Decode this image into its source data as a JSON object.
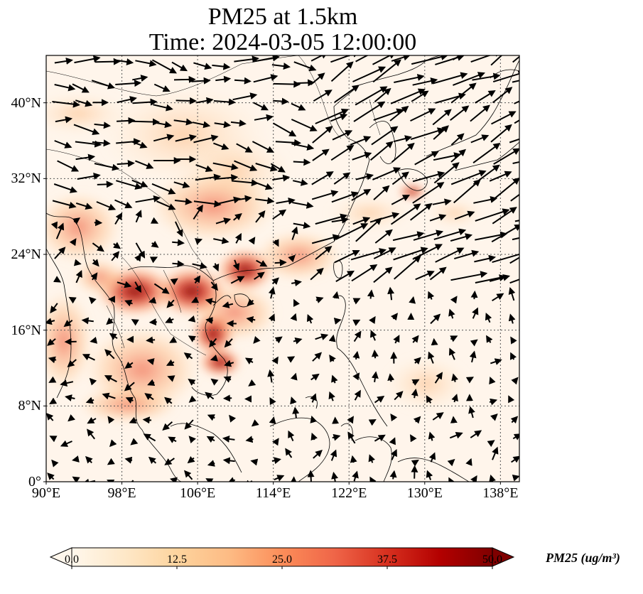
{
  "title": {
    "line1": "PM25 at 1.5km",
    "line2": "Time: 2024-03-05 12:00:00"
  },
  "map": {
    "extent": {
      "lon": [
        90,
        140
      ],
      "lat": [
        0,
        45
      ]
    },
    "lon_ticks": [
      {
        "value": 90,
        "label": "90°E"
      },
      {
        "value": 98,
        "label": "98°E"
      },
      {
        "value": 106,
        "label": "106°E"
      },
      {
        "value": 114,
        "label": "114°E"
      },
      {
        "value": 122,
        "label": "122°E"
      },
      {
        "value": 130,
        "label": "130°E"
      },
      {
        "value": 138,
        "label": "138°E"
      }
    ],
    "lat_ticks": [
      {
        "value": 0,
        "label": "0°"
      },
      {
        "value": 8,
        "label": "8°N"
      },
      {
        "value": 16,
        "label": "16°N"
      },
      {
        "value": 24,
        "label": "24°N"
      },
      {
        "value": 32,
        "label": "32°N"
      },
      {
        "value": 40,
        "label": "40°N"
      }
    ],
    "gridlines": true,
    "background_color": "#fff5eb"
  },
  "colorbar": {
    "colormap": "OrRd",
    "min": 0,
    "max": 50,
    "ticks": [
      "0.0",
      "12.5",
      "25.0",
      "37.5",
      "50.0"
    ],
    "label": "PM25 (ug/m³)",
    "colors": [
      "#fff7ec",
      "#fee8c8",
      "#fdd49e",
      "#fdbb84",
      "#fc8d59",
      "#ef6548",
      "#d7301f",
      "#b30000",
      "#7f0000"
    ]
  }
}
